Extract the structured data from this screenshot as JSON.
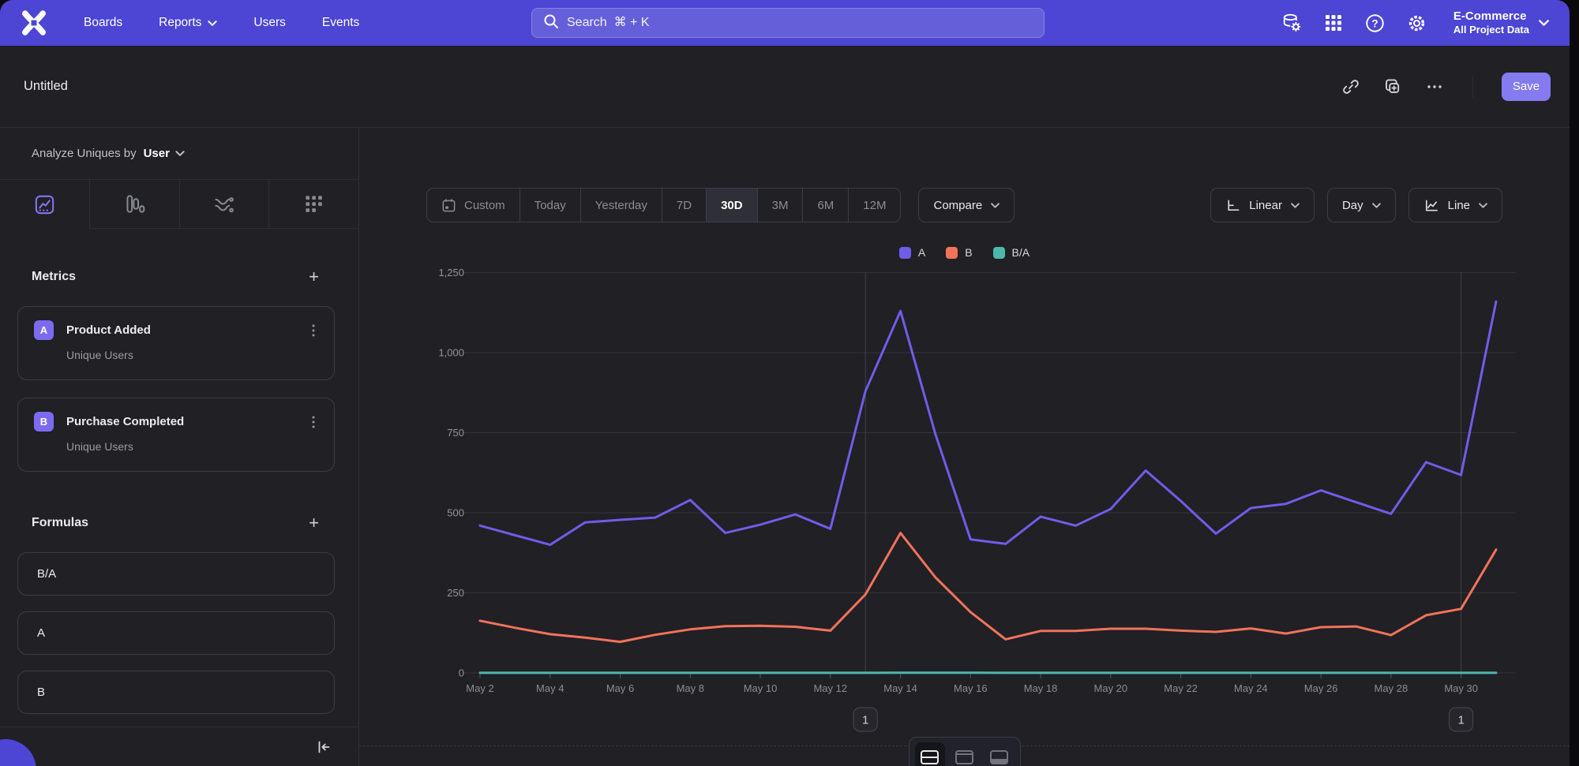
{
  "nav": {
    "menu": [
      {
        "label": "Boards",
        "chevron": false
      },
      {
        "label": "Reports",
        "chevron": true
      },
      {
        "label": "Users",
        "chevron": false
      },
      {
        "label": "Events",
        "chevron": false
      }
    ],
    "search": {
      "placeholder": "Search  ⌘ + K"
    },
    "icons": [
      "data-management-icon",
      "apps-grid-icon",
      "help-icon",
      "settings-icon"
    ],
    "project": {
      "name": "E-Commerce",
      "scope": "All Project Data"
    }
  },
  "header": {
    "title": "Untitled",
    "save_label": "Save"
  },
  "sidebar": {
    "analyze": {
      "prefix": "Analyze Uniques by",
      "value": "User"
    },
    "tabs": [
      {
        "name": "insights",
        "active": true
      },
      {
        "name": "funnels",
        "active": false
      },
      {
        "name": "flows",
        "active": false
      },
      {
        "name": "retention",
        "active": false
      }
    ],
    "metrics": {
      "title": "Metrics",
      "add_label": "+",
      "items": [
        {
          "badge": "A",
          "title": "Product Added",
          "subtitle": "Unique Users"
        },
        {
          "badge": "B",
          "title": "Purchase Completed",
          "subtitle": "Unique Users"
        }
      ]
    },
    "formulas": {
      "title": "Formulas",
      "add_label": "+",
      "items": [
        {
          "label": "B/A"
        },
        {
          "label": "A"
        },
        {
          "label": "B"
        }
      ]
    }
  },
  "toolbar": {
    "ranges": [
      {
        "label": "Custom",
        "icon": "calendar-icon",
        "active": false
      },
      {
        "label": "Today",
        "active": false
      },
      {
        "label": "Yesterday",
        "active": false
      },
      {
        "label": "7D",
        "active": false
      },
      {
        "label": "30D",
        "active": true
      },
      {
        "label": "3M",
        "active": false
      },
      {
        "label": "6M",
        "active": false
      },
      {
        "label": "12M",
        "active": false
      }
    ],
    "compare": {
      "label": "Compare"
    },
    "view_controls": [
      {
        "label": "Linear",
        "icon": "axes-icon"
      },
      {
        "label": "Day",
        "icon": null
      },
      {
        "label": "Line",
        "icon": "line-chart-icon"
      }
    ]
  },
  "chart_data": {
    "type": "line",
    "title": "",
    "xlabel": "",
    "ylabel": "",
    "x": [
      "May 2",
      "May 3",
      "May 4",
      "May 5",
      "May 6",
      "May 7",
      "May 8",
      "May 9",
      "May 10",
      "May 11",
      "May 12",
      "May 13",
      "May 14",
      "May 15",
      "May 16",
      "May 17",
      "May 18",
      "May 19",
      "May 20",
      "May 21",
      "May 22",
      "May 23",
      "May 24",
      "May 25",
      "May 26",
      "May 27",
      "May 28",
      "May 29",
      "May 30",
      "May 31"
    ],
    "x_tick_labels": [
      "May 2",
      "May 4",
      "May 6",
      "May 8",
      "May 10",
      "May 12",
      "May 14",
      "May 16",
      "May 18",
      "May 20",
      "May 22",
      "May 24",
      "May 26",
      "May 28",
      "May 30"
    ],
    "series": [
      {
        "name": "A",
        "color": "#6f5de8",
        "values": [
          460,
          430,
          400,
          470,
          478,
          485,
          540,
          437,
          463,
          495,
          450,
          880,
          1130,
          745,
          417,
          403,
          488,
          460,
          512,
          632,
          537,
          435,
          515,
          528,
          570,
          533,
          497,
          658,
          618,
          1160
        ]
      },
      {
        "name": "B",
        "color": "#f2735a",
        "values": [
          163,
          141,
          121,
          110,
          97,
          119,
          136,
          146,
          147,
          144,
          132,
          245,
          437,
          298,
          190,
          105,
          131,
          131,
          138,
          138,
          132,
          128,
          139,
          123,
          143,
          145,
          118,
          180,
          200,
          385
        ]
      },
      {
        "name": "B/A",
        "color": "#4db8ac",
        "values": [
          0.35,
          0.33,
          0.3,
          0.23,
          0.2,
          0.25,
          0.25,
          0.33,
          0.32,
          0.29,
          0.29,
          0.28,
          0.39,
          0.4,
          0.46,
          0.26,
          0.27,
          0.28,
          0.27,
          0.22,
          0.25,
          0.29,
          0.27,
          0.23,
          0.25,
          0.27,
          0.24,
          0.27,
          0.32,
          0.33
        ]
      }
    ],
    "ylim": [
      0,
      1250
    ],
    "yticks": [
      {
        "value": 0,
        "label": "0"
      },
      {
        "value": 250,
        "label": "250"
      },
      {
        "value": 500,
        "label": "500"
      },
      {
        "value": 750,
        "label": "750"
      },
      {
        "value": 1000,
        "label": "1,000"
      },
      {
        "value": 1250,
        "label": "1,250"
      }
    ],
    "grid": true,
    "legend": [
      "A",
      "B",
      "B/A"
    ],
    "legend_position": "top-center",
    "annotations": [
      {
        "label": "1",
        "x": "May 13"
      },
      {
        "label": "1",
        "x": "May 30"
      }
    ]
  },
  "footer": {
    "layout_toggles": [
      {
        "name": "chart-and-table",
        "active": true
      },
      {
        "name": "chart-top-bar",
        "active": false
      },
      {
        "name": "chart-bottom-bar",
        "active": false
      }
    ]
  },
  "colors": {
    "nav": "#4d45d4",
    "accent": "#7c6af0",
    "series_a": "#6f5de8",
    "series_b": "#f2735a",
    "series_ba": "#4db8ac"
  }
}
